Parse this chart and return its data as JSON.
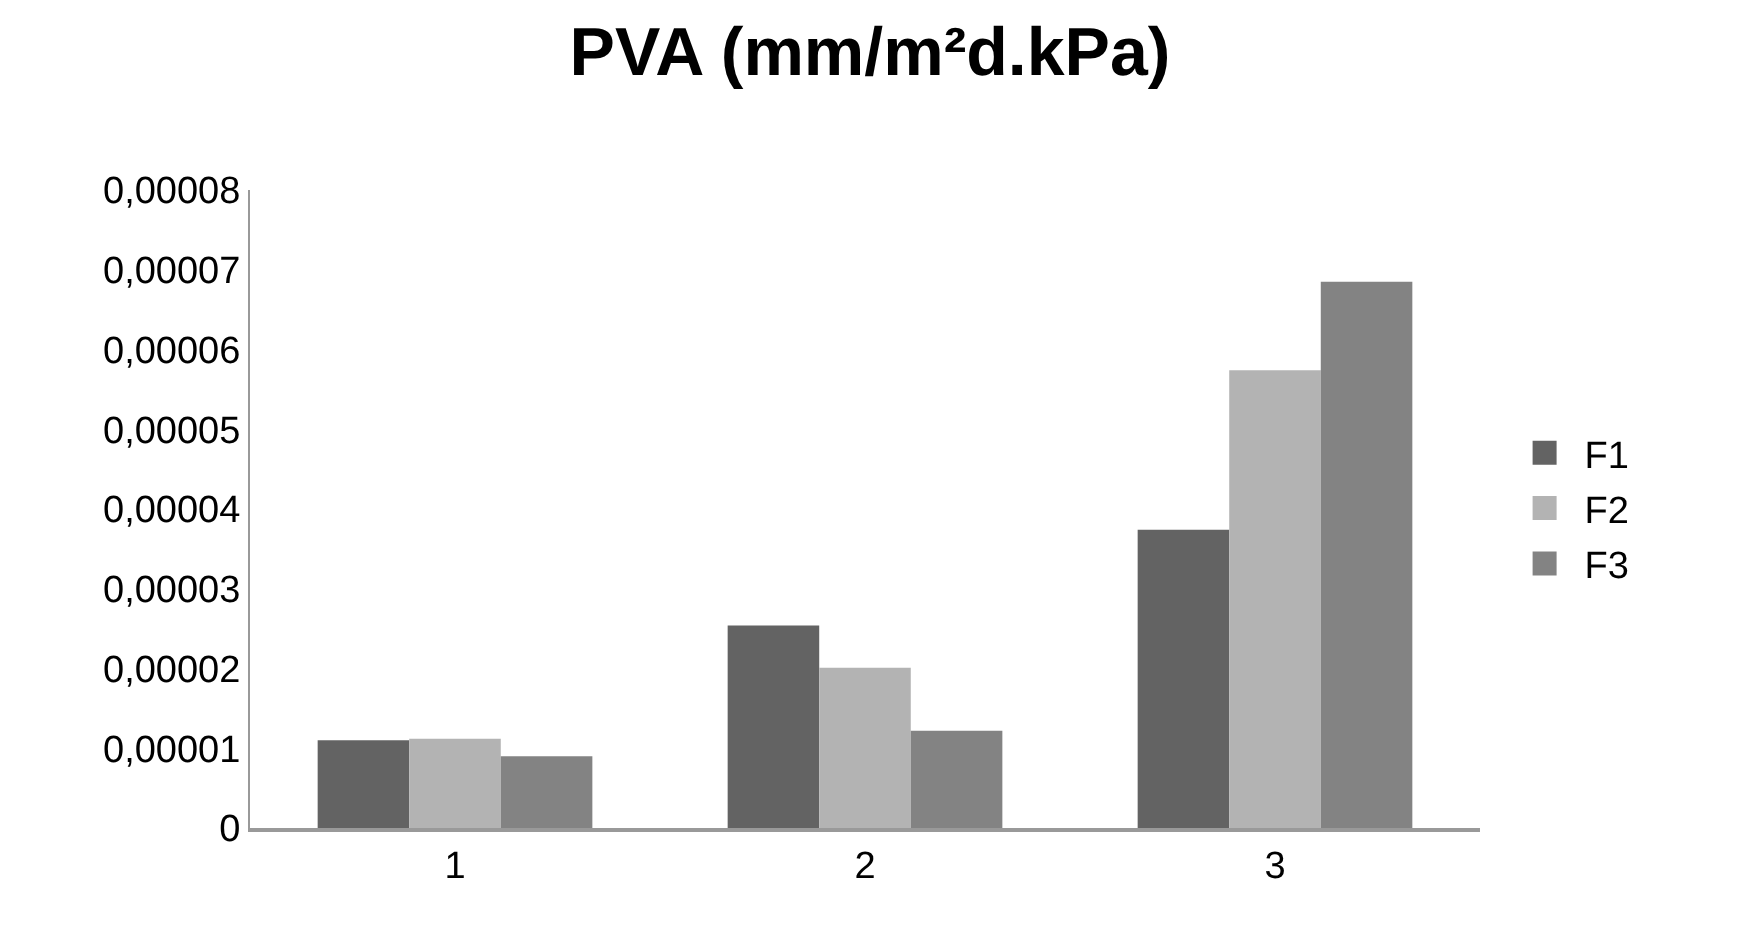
{
  "chart_data": {
    "type": "bar",
    "title": "PVA (mm/m²d.kPa)",
    "categories": [
      "1",
      "2",
      "3"
    ],
    "series": [
      {
        "name": "F1",
        "color": "#636363",
        "values": [
          1.1e-05,
          2.54e-05,
          3.74e-05
        ]
      },
      {
        "name": "F2",
        "color": "#b3b3b3",
        "values": [
          1.12e-05,
          2.01e-05,
          5.74e-05
        ]
      },
      {
        "name": "F3",
        "color": "#838383",
        "values": [
          9e-06,
          1.22e-05,
          6.85e-05
        ]
      }
    ],
    "ylim": [
      0,
      8e-05
    ],
    "yticks": [
      0,
      {
        "value": 1e-05,
        "label": "0,00001"
      },
      {
        "value": 2e-05,
        "label": "0,00002"
      },
      {
        "value": 3e-05,
        "label": "0,00003"
      },
      {
        "value": 4e-05,
        "label": "0,00004"
      },
      {
        "value": 5e-05,
        "label": "0,00005"
      },
      {
        "value": 6e-05,
        "label": "0,00006"
      },
      {
        "value": 7e-05,
        "label": "0,00007"
      },
      {
        "value": 8e-05,
        "label": "0,00008"
      }
    ],
    "grid": false,
    "legend": "right"
  }
}
